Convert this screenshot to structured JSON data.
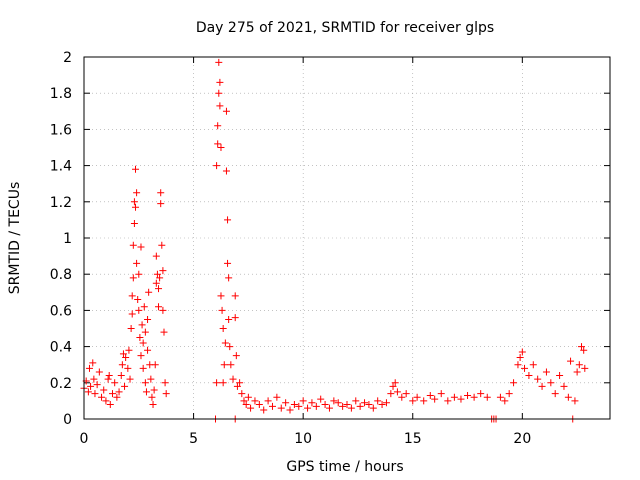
{
  "chart_data": {
    "type": "scatter",
    "title": "Day 275 of 2021, SRMTID for receiver glps",
    "xlabel": "GPS time / hours",
    "ylabel": "SRMTID / TECUs",
    "xlim": [
      0,
      24
    ],
    "ylim": [
      0,
      2
    ],
    "xticks": [
      0,
      5,
      10,
      15,
      20
    ],
    "xtick_labels": [
      "0",
      "5",
      "10",
      "15",
      "20"
    ],
    "yticks": [
      0,
      0.2,
      0.4,
      0.6,
      0.8,
      1,
      1.2,
      1.4,
      1.6,
      1.8,
      2
    ],
    "ytick_labels": [
      "0",
      "0.2",
      "0.4",
      "0.6",
      "0.8",
      "1",
      "1.2",
      "1.4",
      "1.6",
      "1.8",
      "2"
    ],
    "grid": true,
    "marker": "+",
    "color": "#ff0000",
    "series": [
      {
        "name": "SRMTID",
        "points": [
          [
            0.0,
            0.17
          ],
          [
            0.1,
            0.21
          ],
          [
            0.2,
            0.15
          ],
          [
            0.25,
            0.28
          ],
          [
            0.3,
            0.18
          ],
          [
            0.4,
            0.31
          ],
          [
            0.45,
            0.22
          ],
          [
            0.5,
            0.14
          ],
          [
            0.6,
            0.19
          ],
          [
            0.7,
            0.26
          ],
          [
            0.8,
            0.12
          ],
          [
            0.9,
            0.16
          ],
          [
            1.0,
            0.1
          ],
          [
            1.1,
            0.22
          ],
          [
            1.15,
            0.24
          ],
          [
            1.2,
            0.08
          ],
          [
            1.3,
            0.14
          ],
          [
            1.4,
            0.2
          ],
          [
            1.5,
            0.12
          ],
          [
            1.6,
            0.15
          ],
          [
            1.7,
            0.24
          ],
          [
            1.75,
            0.3
          ],
          [
            1.8,
            0.36
          ],
          [
            1.85,
            0.18
          ],
          [
            1.9,
            0.34
          ],
          [
            2.0,
            0.28
          ],
          [
            2.05,
            0.38
          ],
          [
            2.1,
            0.22
          ],
          [
            2.15,
            0.5
          ],
          [
            2.2,
            0.58
          ],
          [
            2.2,
            0.68
          ],
          [
            2.25,
            0.78
          ],
          [
            2.25,
            0.96
          ],
          [
            2.3,
            1.08
          ],
          [
            2.3,
            1.2
          ],
          [
            2.35,
            1.38
          ],
          [
            2.35,
            1.17
          ],
          [
            2.4,
            1.25
          ],
          [
            2.4,
            0.86
          ],
          [
            2.45,
            0.66
          ],
          [
            2.5,
            0.6
          ],
          [
            2.5,
            0.8
          ],
          [
            2.55,
            0.45
          ],
          [
            2.6,
            0.35
          ],
          [
            2.6,
            0.95
          ],
          [
            2.65,
            0.52
          ],
          [
            2.7,
            0.28
          ],
          [
            2.7,
            0.42
          ],
          [
            2.75,
            0.62
          ],
          [
            2.8,
            0.2
          ],
          [
            2.8,
            0.48
          ],
          [
            2.85,
            0.15
          ],
          [
            2.9,
            0.38
          ],
          [
            2.9,
            0.55
          ],
          [
            2.95,
            0.7
          ],
          [
            3.0,
            0.3
          ],
          [
            3.05,
            0.22
          ],
          [
            3.1,
            0.12
          ],
          [
            3.15,
            0.08
          ],
          [
            3.2,
            0.16
          ],
          [
            3.25,
            0.3
          ],
          [
            3.3,
            0.75
          ],
          [
            3.3,
            0.9
          ],
          [
            3.35,
            0.8
          ],
          [
            3.4,
            0.72
          ],
          [
            3.4,
            0.62
          ],
          [
            3.45,
            0.78
          ],
          [
            3.5,
            1.25
          ],
          [
            3.5,
            1.19
          ],
          [
            3.55,
            0.96
          ],
          [
            3.6,
            0.82
          ],
          [
            3.6,
            0.6
          ],
          [
            3.65,
            0.48
          ],
          [
            3.7,
            0.2
          ],
          [
            3.75,
            0.14
          ],
          [
            6.0,
            0.0
          ],
          [
            6.05,
            0.2
          ],
          [
            6.05,
            1.4
          ],
          [
            6.1,
            1.52
          ],
          [
            6.1,
            1.62
          ],
          [
            6.15,
            1.8
          ],
          [
            6.15,
            1.97
          ],
          [
            6.2,
            1.86
          ],
          [
            6.2,
            1.73
          ],
          [
            6.25,
            1.5
          ],
          [
            6.25,
            0.68
          ],
          [
            6.3,
            0.6
          ],
          [
            6.35,
            0.5
          ],
          [
            6.35,
            0.2
          ],
          [
            6.4,
            0.3
          ],
          [
            6.45,
            0.42
          ],
          [
            6.5,
            1.37
          ],
          [
            6.5,
            1.7
          ],
          [
            6.55,
            1.1
          ],
          [
            6.55,
            0.86
          ],
          [
            6.6,
            0.78
          ],
          [
            6.6,
            0.55
          ],
          [
            6.65,
            0.4
          ],
          [
            6.7,
            0.3
          ],
          [
            6.8,
            0.22
          ],
          [
            6.9,
            0.68
          ],
          [
            6.9,
            0.56
          ],
          [
            6.95,
            0.35
          ],
          [
            7.0,
            0.18
          ],
          [
            7.1,
            0.2
          ],
          [
            6.9,
            0.0
          ],
          [
            7.2,
            0.14
          ],
          [
            7.3,
            0.1
          ],
          [
            7.4,
            0.08
          ],
          [
            7.5,
            0.12
          ],
          [
            7.6,
            0.06
          ],
          [
            7.8,
            0.1
          ],
          [
            8.0,
            0.08
          ],
          [
            8.2,
            0.05
          ],
          [
            8.4,
            0.1
          ],
          [
            8.6,
            0.07
          ],
          [
            8.8,
            0.12
          ],
          [
            9.0,
            0.06
          ],
          [
            9.2,
            0.09
          ],
          [
            9.4,
            0.05
          ],
          [
            9.6,
            0.08
          ],
          [
            9.8,
            0.07
          ],
          [
            10.0,
            0.1
          ],
          [
            10.2,
            0.06
          ],
          [
            10.4,
            0.09
          ],
          [
            10.6,
            0.07
          ],
          [
            10.8,
            0.11
          ],
          [
            11.0,
            0.08
          ],
          [
            11.2,
            0.06
          ],
          [
            11.4,
            0.1
          ],
          [
            11.6,
            0.09
          ],
          [
            11.8,
            0.07
          ],
          [
            12.0,
            0.08
          ],
          [
            12.2,
            0.06
          ],
          [
            12.4,
            0.1
          ],
          [
            12.6,
            0.07
          ],
          [
            12.8,
            0.09
          ],
          [
            13.0,
            0.08
          ],
          [
            13.2,
            0.06
          ],
          [
            13.4,
            0.1
          ],
          [
            13.6,
            0.08
          ],
          [
            13.8,
            0.09
          ],
          [
            14.0,
            0.14
          ],
          [
            14.1,
            0.18
          ],
          [
            14.2,
            0.2
          ],
          [
            14.3,
            0.15
          ],
          [
            14.5,
            0.12
          ],
          [
            14.7,
            0.14
          ],
          [
            15.0,
            0.1
          ],
          [
            15.2,
            0.12
          ],
          [
            15.5,
            0.1
          ],
          [
            15.8,
            0.13
          ],
          [
            16.0,
            0.11
          ],
          [
            16.3,
            0.14
          ],
          [
            16.6,
            0.1
          ],
          [
            16.9,
            0.12
          ],
          [
            17.2,
            0.11
          ],
          [
            17.5,
            0.13
          ],
          [
            17.8,
            0.12
          ],
          [
            18.1,
            0.14
          ],
          [
            18.4,
            0.12
          ],
          [
            18.6,
            0.0
          ],
          [
            18.7,
            0.0
          ],
          [
            18.8,
            0.0
          ],
          [
            19.0,
            0.12
          ],
          [
            19.2,
            0.1
          ],
          [
            19.4,
            0.14
          ],
          [
            19.6,
            0.2
          ],
          [
            19.8,
            0.3
          ],
          [
            19.9,
            0.34
          ],
          [
            20.0,
            0.37
          ],
          [
            20.1,
            0.28
          ],
          [
            20.3,
            0.24
          ],
          [
            20.5,
            0.3
          ],
          [
            20.7,
            0.22
          ],
          [
            20.9,
            0.18
          ],
          [
            21.1,
            0.26
          ],
          [
            21.3,
            0.2
          ],
          [
            21.5,
            0.14
          ],
          [
            21.7,
            0.24
          ],
          [
            21.9,
            0.18
          ],
          [
            22.1,
            0.12
          ],
          [
            22.2,
            0.32
          ],
          [
            22.3,
            0.0
          ],
          [
            22.4,
            0.1
          ],
          [
            22.5,
            0.26
          ],
          [
            22.6,
            0.3
          ],
          [
            22.7,
            0.4
          ],
          [
            22.8,
            0.38
          ],
          [
            22.85,
            0.28
          ]
        ]
      }
    ]
  }
}
